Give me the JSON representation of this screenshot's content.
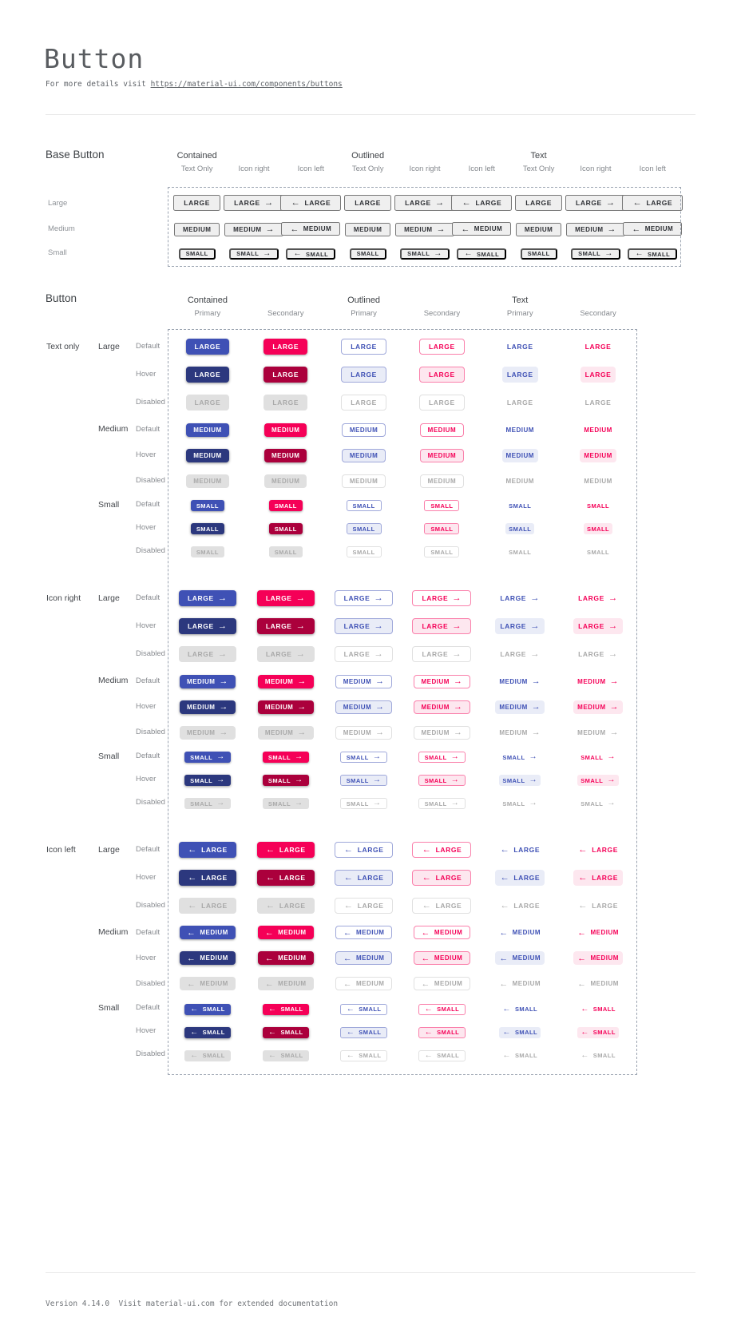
{
  "header": {
    "title": "Button",
    "subtitle_prefix": "For more details visit ",
    "subtitle_link": "https://material-ui.com/components/buttons"
  },
  "footer": {
    "text": "Version 4.14.0  Visit material-ui.com for extended documentation"
  },
  "icons": {
    "arrow_right": "→",
    "arrow_left": "←"
  },
  "colors": {
    "primary": "#3f51b5",
    "primary_dark": "#2c387e",
    "secondary": "#f50057",
    "secondary_dark": "#ab003c",
    "disabled_bg": "#e0e0e0",
    "disabled_text": "#a9a9a9",
    "outline_primary": "#9fa8da",
    "outline_secondary": "#fa80ab",
    "outline_disabled": "#e0e0e0",
    "tint_primary": "#e9ecf7",
    "tint_secondary": "#fde7ef",
    "base_text": "#2c2e33",
    "dashed_border": "#9aa3b0",
    "divider": "#e8e8e8"
  },
  "base_section": {
    "title": "Base Button",
    "groups": [
      "Contained",
      "Outlined",
      "Text"
    ],
    "subcolumns": [
      "Text Only",
      "Icon right",
      "Icon left"
    ],
    "row_labels": [
      "Large",
      "Medium",
      "Small"
    ],
    "button_texts": [
      "LARGE",
      "MEDIUM",
      "SMALL"
    ]
  },
  "button_section": {
    "title": "Button",
    "groups": [
      "Contained",
      "Outlined",
      "Text"
    ],
    "subcolumns": [
      "Primary",
      "Secondary"
    ],
    "icon_blocks": [
      "Text only",
      "Icon right",
      "Icon left"
    ],
    "sizes": [
      "Large",
      "Medium",
      "Small"
    ],
    "states": [
      "Default",
      "Hover",
      "Disabled"
    ],
    "button_texts": [
      "LARGE",
      "MEDIUM",
      "SMALL"
    ]
  }
}
